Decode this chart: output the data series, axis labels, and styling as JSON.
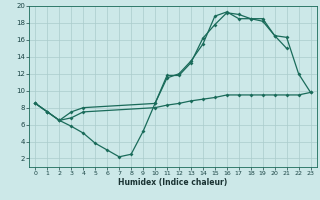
{
  "xlabel": "Humidex (Indice chaleur)",
  "bg_color": "#cce8e8",
  "grid_color": "#aacccc",
  "line_color": "#1a6b5a",
  "xlim": [
    -0.5,
    23.5
  ],
  "ylim": [
    1,
    20
  ],
  "xticks": [
    0,
    1,
    2,
    3,
    4,
    5,
    6,
    7,
    8,
    9,
    10,
    11,
    12,
    13,
    14,
    15,
    16,
    17,
    18,
    19,
    20,
    21,
    22,
    23
  ],
  "yticks": [
    2,
    4,
    6,
    8,
    10,
    12,
    14,
    16,
    18,
    20
  ],
  "line1_x": [
    0,
    1,
    2,
    3,
    4,
    5,
    6,
    7,
    8,
    9,
    10,
    11,
    12,
    13,
    14,
    15,
    16,
    17,
    18,
    19,
    20,
    21
  ],
  "line1_y": [
    8.5,
    7.5,
    6.5,
    5.8,
    5.0,
    3.8,
    3.0,
    2.2,
    2.5,
    5.2,
    8.5,
    11.8,
    11.8,
    13.3,
    16.2,
    17.8,
    19.2,
    19.0,
    18.5,
    18.5,
    16.5,
    15.0
  ],
  "line2_x": [
    0,
    1,
    2,
    3,
    4,
    10,
    11,
    12,
    13,
    14,
    15,
    16,
    17,
    18,
    19,
    20,
    21,
    22,
    23
  ],
  "line2_y": [
    8.5,
    7.5,
    6.5,
    7.5,
    8.0,
    8.5,
    11.5,
    12.0,
    13.5,
    15.5,
    18.8,
    19.3,
    18.5,
    18.5,
    18.2,
    16.5,
    16.3,
    12.0,
    9.8
  ],
  "line3_x": [
    0,
    1,
    2,
    3,
    4,
    10,
    11,
    12,
    13,
    14,
    15,
    16,
    17,
    18,
    19,
    20,
    21,
    22,
    23
  ],
  "line3_y": [
    8.5,
    7.5,
    6.5,
    6.8,
    7.5,
    8.0,
    8.3,
    8.5,
    8.8,
    9.0,
    9.2,
    9.5,
    9.5,
    9.5,
    9.5,
    9.5,
    9.5,
    9.5,
    9.8
  ]
}
